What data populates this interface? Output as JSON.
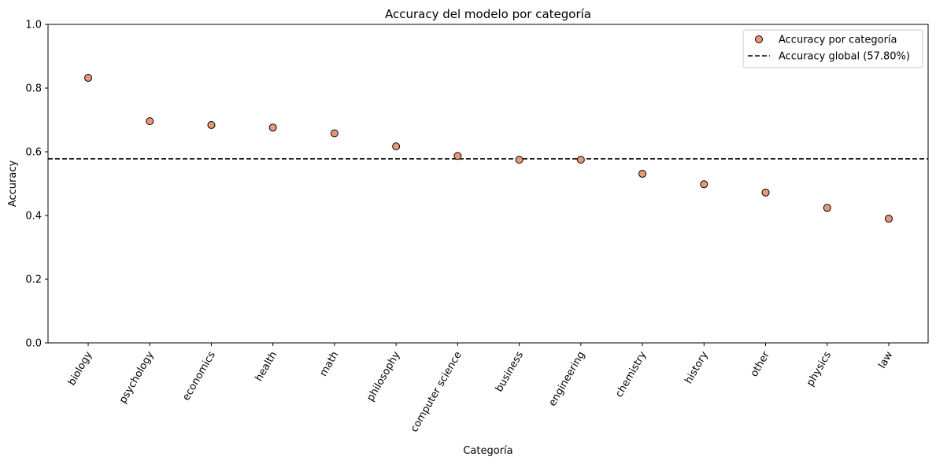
{
  "chart_data": {
    "type": "scatter",
    "title": "Accuracy del modelo por categoría",
    "xlabel": "Categoría",
    "ylabel": "Accuracy",
    "ylim": [
      0,
      1
    ],
    "yticks": [
      "0.0",
      "0.2",
      "0.4",
      "0.6",
      "0.8",
      "1.0"
    ],
    "grid": false,
    "legend_position": "top-right",
    "categories": [
      "biology",
      "psychology",
      "economics",
      "health",
      "math",
      "philosophy",
      "computer science",
      "business",
      "engineering",
      "chemistry",
      "history",
      "other",
      "physics",
      "law"
    ],
    "series": [
      {
        "name": "Accuracy por categoría",
        "values": [
          0.832,
          0.696,
          0.684,
          0.676,
          0.658,
          0.617,
          0.587,
          0.575,
          0.575,
          0.531,
          0.498,
          0.472,
          0.424,
          0.39
        ],
        "color": "#e9967a",
        "edge_color": "#000000"
      }
    ],
    "reference_line": {
      "name": "Accuracy global (57.80%)",
      "value": 0.578,
      "style": "dashed",
      "color": "#000000"
    }
  }
}
